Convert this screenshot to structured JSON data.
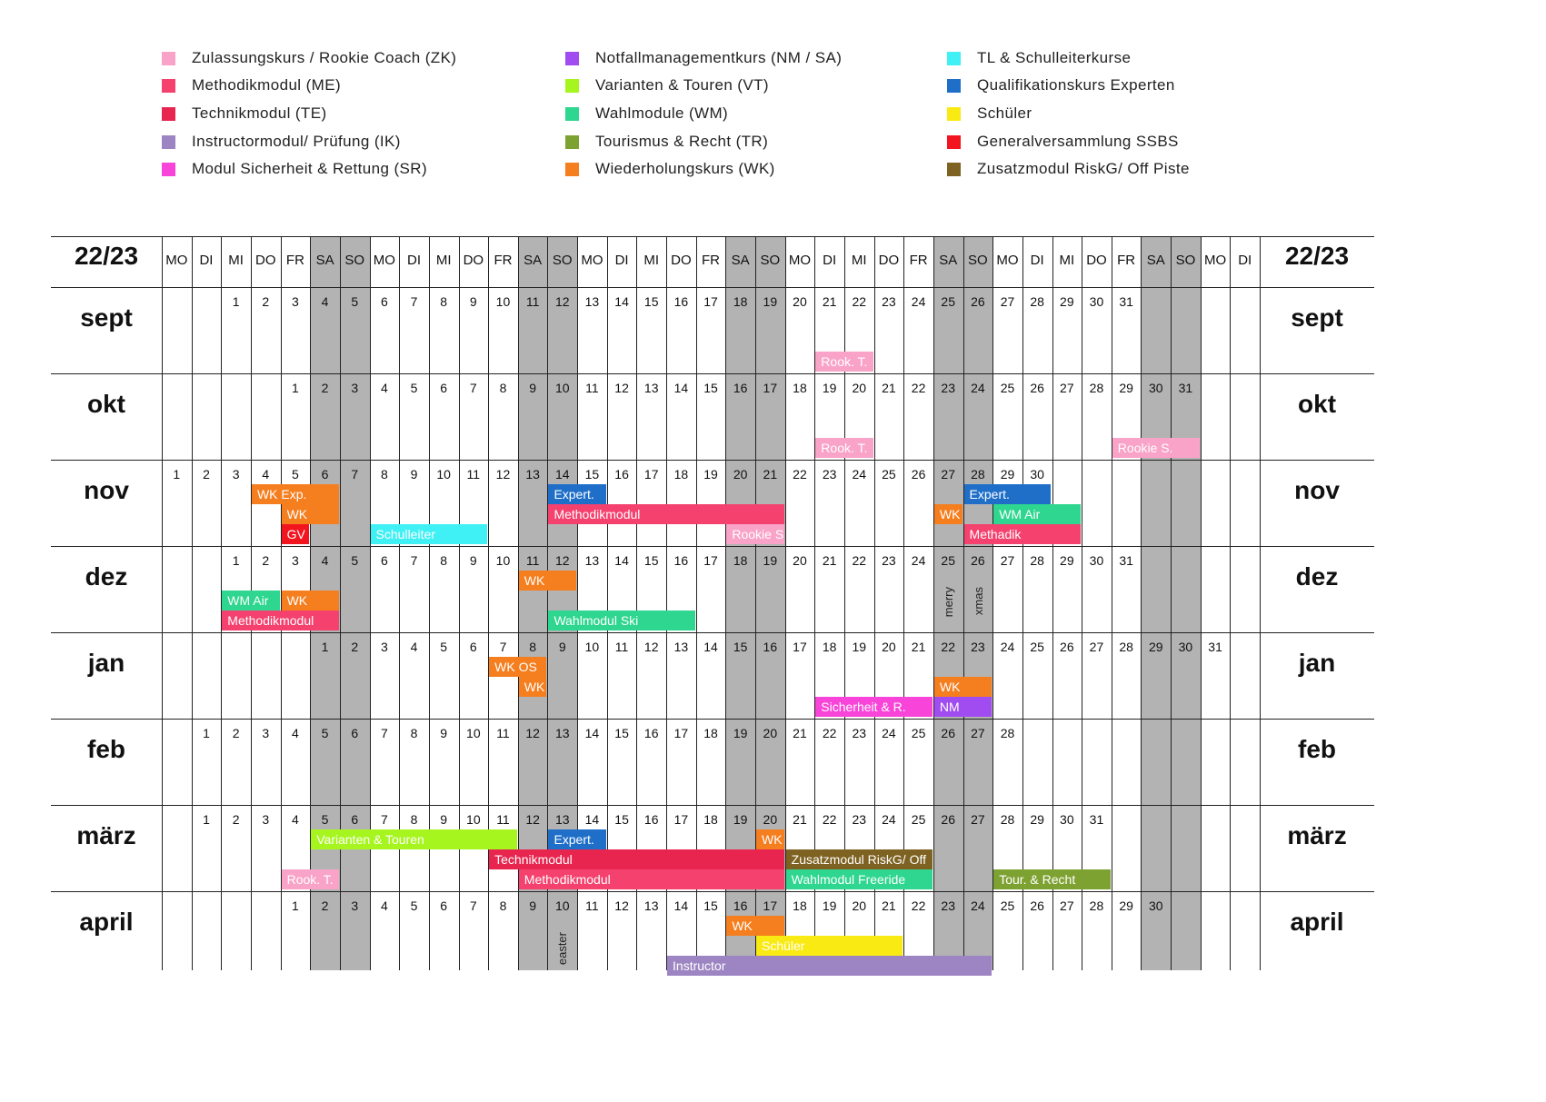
{
  "legend": [
    {
      "label": "Zulassungskurs / Rookie Coach (ZK)",
      "color": "#f9a3c8"
    },
    {
      "label": "Methodikmodul (ME)",
      "color": "#f5416e"
    },
    {
      "label": "Technikmodul (TE)",
      "color": "#e8254f"
    },
    {
      "label": "Instructormodul/ Prüfung (IK)",
      "color": "#9c85c2"
    },
    {
      "label": "Modul Sicherheit & Rettung (SR)",
      "color": "#f844d8"
    },
    {
      "label": "Notfallmanagementkurs (NM / SA)",
      "color": "#a14cf0"
    },
    {
      "label": "Varianten & Touren (VT)",
      "color": "#a6f51f"
    },
    {
      "label": "Wahlmodule (WM)",
      "color": "#2ed68f"
    },
    {
      "label": "Tourismus & Recht (TR)",
      "color": "#7ea232"
    },
    {
      "label": "Wiederholungskurs (WK)",
      "color": "#f57e1f"
    },
    {
      "label": "TL & Schulleiterkurse",
      "color": "#3ff0f5"
    },
    {
      "label": "Qualifikationskurs Experten",
      "color": "#1f6fc9"
    },
    {
      "label": "Schüler",
      "color": "#faea14"
    },
    {
      "label": "Generalversammlung SSBS",
      "color": "#f2141e"
    },
    {
      "label": "Zusatzmodul RiskG/ Off Piste",
      "color": "#7d6221"
    }
  ],
  "year": "22/23",
  "days": [
    "MO",
    "DI",
    "MI",
    "DO",
    "FR",
    "SA",
    "SO",
    "MO",
    "DI",
    "MI",
    "DO",
    "FR",
    "SA",
    "SO",
    "MO",
    "DI",
    "MI",
    "DO",
    "FR",
    "SA",
    "SO",
    "MO",
    "DI",
    "MI",
    "DO",
    "FR",
    "SA",
    "SO",
    "MO",
    "DI",
    "MI",
    "DO",
    "FR",
    "SA",
    "SO",
    "MO",
    "DI"
  ],
  "months": [
    {
      "name": "sept",
      "start": 3,
      "len": 31
    },
    {
      "name": "okt",
      "start": 5,
      "len": 31
    },
    {
      "name": "nov",
      "start": 1,
      "len": 30
    },
    {
      "name": "dez",
      "start": 3,
      "len": 31
    },
    {
      "name": "jan",
      "start": 6,
      "len": 31
    },
    {
      "name": "feb",
      "start": 2,
      "len": 28
    },
    {
      "name": "märz",
      "start": 2,
      "len": 31
    },
    {
      "name": "april",
      "start": 5,
      "len": 30
    }
  ],
  "events": [
    {
      "m": 0,
      "c1": 23,
      "c2": 24,
      "row": 2,
      "label": "Rook. T.",
      "color": "#f9a3c8"
    },
    {
      "m": 1,
      "c1": 23,
      "c2": 24,
      "row": 2,
      "label": "Rook. T.",
      "color": "#f9a3c8"
    },
    {
      "m": 1,
      "c1": 33,
      "c2": 35,
      "row": 2,
      "label": "Rookie S.",
      "color": "#f9a3c8"
    },
    {
      "m": 2,
      "c1": 4,
      "c2": 6,
      "row": 0,
      "label": "WK Exp.",
      "color": "#f57e1f"
    },
    {
      "m": 2,
      "c1": 5,
      "c2": 6,
      "row": 1,
      "label": "WK",
      "color": "#f57e1f"
    },
    {
      "m": 2,
      "c1": 5,
      "c2": 5,
      "row": 2,
      "label": "GV",
      "color": "#f2141e"
    },
    {
      "m": 2,
      "c1": 8,
      "c2": 11,
      "row": 2,
      "label": "Schulleiter",
      "color": "#3ff0f5"
    },
    {
      "m": 2,
      "c1": 14,
      "c2": 15,
      "row": 0,
      "label": "Expert.",
      "color": "#1f6fc9"
    },
    {
      "m": 2,
      "c1": 14,
      "c2": 21,
      "row": 1,
      "label": "Methodikmodul",
      "color": "#f5416e"
    },
    {
      "m": 2,
      "c1": 20,
      "c2": 21,
      "row": 2,
      "label": "Rookie S.",
      "color": "#f9a3c8"
    },
    {
      "m": 2,
      "c1": 27,
      "c2": 27,
      "row": 1,
      "label": "WK",
      "color": "#f57e1f"
    },
    {
      "m": 2,
      "c1": 28,
      "c2": 30,
      "row": 0,
      "label": "Expert.",
      "color": "#1f6fc9"
    },
    {
      "m": 2,
      "c1": 29,
      "c2": 31,
      "row": 1,
      "label": "WM Air",
      "color": "#2ed68f"
    },
    {
      "m": 2,
      "c1": 28,
      "c2": 31,
      "row": 2,
      "label": "Methadik",
      "color": "#f5416e"
    },
    {
      "m": 3,
      "c1": 13,
      "c2": 14,
      "row": 0,
      "label": "WK",
      "color": "#f57e1f"
    },
    {
      "m": 3,
      "c1": 3,
      "c2": 4,
      "row": 1,
      "label": "WM Air",
      "color": "#2ed68f"
    },
    {
      "m": 3,
      "c1": 5,
      "c2": 6,
      "row": 1,
      "label": "WK",
      "color": "#f57e1f"
    },
    {
      "m": 3,
      "c1": 3,
      "c2": 6,
      "row": 2,
      "label": "Methodikmodul",
      "color": "#f5416e"
    },
    {
      "m": 3,
      "c1": 14,
      "c2": 18,
      "row": 2,
      "label": "Wahlmodul Ski",
      "color": "#2ed68f"
    },
    {
      "m": 4,
      "c1": 12,
      "c2": 13,
      "row": 0,
      "label": "WK OS",
      "color": "#f57e1f"
    },
    {
      "m": 4,
      "c1": 13,
      "c2": 13,
      "row": 1,
      "label": "WK TL",
      "color": "#f57e1f"
    },
    {
      "m": 4,
      "c1": 23,
      "c2": 26,
      "row": 2,
      "label": "Sicherheit & R.",
      "color": "#f844d8"
    },
    {
      "m": 4,
      "c1": 27,
      "c2": 28,
      "row": 1,
      "label": "WK",
      "color": "#f57e1f"
    },
    {
      "m": 4,
      "c1": 27,
      "c2": 28,
      "row": 2,
      "label": "NM",
      "color": "#a14cf0"
    },
    {
      "m": 6,
      "c1": 6,
      "c2": 12,
      "row": 0,
      "label": "Varianten & Touren",
      "color": "#a6f51f"
    },
    {
      "m": 6,
      "c1": 14,
      "c2": 15,
      "row": 0,
      "label": "Expert.",
      "color": "#1f6fc9"
    },
    {
      "m": 6,
      "c1": 21,
      "c2": 21,
      "row": 0,
      "label": "WK FR",
      "color": "#f57e1f"
    },
    {
      "m": 6,
      "c1": 12,
      "c2": 21,
      "row": 1,
      "label": "Technikmodul",
      "color": "#e8254f"
    },
    {
      "m": 6,
      "c1": 22,
      "c2": 26,
      "row": 1,
      "label": "Zusatzmodul RiskG/ Off",
      "color": "#7d6221"
    },
    {
      "m": 6,
      "c1": 5,
      "c2": 6,
      "row": 2,
      "label": "Rook. T.",
      "color": "#f9a3c8"
    },
    {
      "m": 6,
      "c1": 13,
      "c2": 21,
      "row": 2,
      "label": "Methodikmodul",
      "color": "#f5416e"
    },
    {
      "m": 6,
      "c1": 22,
      "c2": 26,
      "row": 2,
      "label": "Wahlmodul Freeride",
      "color": "#2ed68f"
    },
    {
      "m": 6,
      "c1": 29,
      "c2": 32,
      "row": 2,
      "label": "Tour. & Recht",
      "color": "#7ea232"
    },
    {
      "m": 7,
      "c1": 20,
      "c2": 21,
      "row": 0,
      "label": "WK",
      "color": "#f57e1f"
    },
    {
      "m": 7,
      "c1": 21,
      "c2": 25,
      "row": 1,
      "label": "Schüler",
      "color": "#faea14"
    },
    {
      "m": 7,
      "c1": 18,
      "c2": 28,
      "row": 2,
      "label": "Instructor",
      "color": "#9c85c2"
    }
  ],
  "notes": [
    {
      "m": 3,
      "col": 27,
      "label": "merry"
    },
    {
      "m": 3,
      "col": 28,
      "label": "xmas"
    },
    {
      "m": 7,
      "col": 14,
      "label": "easter"
    }
  ]
}
